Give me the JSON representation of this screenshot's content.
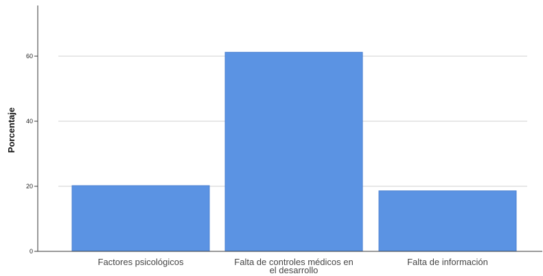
{
  "chart_data": {
    "type": "bar",
    "categories": [
      "Factores psicológicos",
      "Falta de controles médicos en el desarrollo",
      "Falta de información"
    ],
    "category_lines": [
      [
        "Factores psicológicos"
      ],
      [
        "Falta de controles médicos en",
        "el desarrollo"
      ],
      [
        "Falta de información"
      ]
    ],
    "values": [
      20.2,
      61.2,
      18.6
    ],
    "xlabel": "",
    "ylabel": "Porcentaje",
    "ylim": [
      0,
      75
    ],
    "yticks": [
      0,
      20,
      40,
      60
    ],
    "grid": true,
    "legend": "none",
    "bar_color": "#5b93e3",
    "bar_edge_color": "#4a7fd0",
    "grid_color": "#cfcfcf"
  }
}
